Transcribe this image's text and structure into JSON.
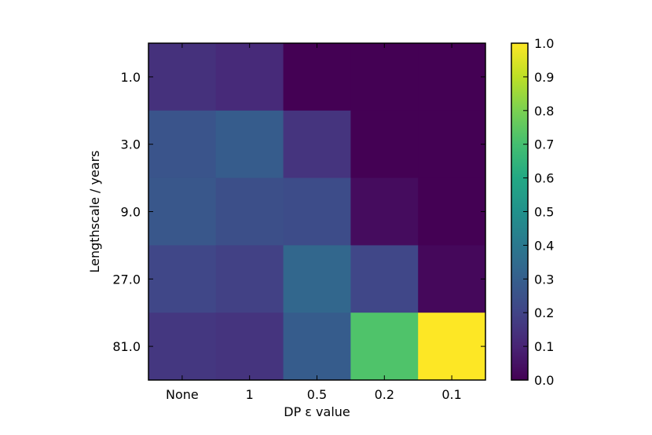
{
  "chart_data": {
    "type": "heatmap",
    "title": "",
    "xlabel": "DP ε value",
    "ylabel": "Lengthscale / years",
    "x_categories": [
      "None",
      "1",
      "0.5",
      "0.2",
      "0.1"
    ],
    "y_categories": [
      "1.0",
      "3.0",
      "9.0",
      "27.0",
      "81.0"
    ],
    "values": [
      [
        0.14,
        0.12,
        0.0,
        0.0,
        0.0
      ],
      [
        0.26,
        0.29,
        0.15,
        0.0,
        0.0
      ],
      [
        0.27,
        0.24,
        0.23,
        0.03,
        0.0
      ],
      [
        0.21,
        0.19,
        0.33,
        0.21,
        0.02
      ],
      [
        0.16,
        0.15,
        0.29,
        0.72,
        1.0
      ]
    ],
    "colormap": "viridis",
    "vmin": 0.0,
    "vmax": 1.0,
    "colorbar": {
      "ticks": [
        "0.0",
        "0.1",
        "0.2",
        "0.3",
        "0.4",
        "0.5",
        "0.6",
        "0.7",
        "0.8",
        "0.9",
        "1.0"
      ],
      "placement": "right"
    },
    "grid": false
  }
}
